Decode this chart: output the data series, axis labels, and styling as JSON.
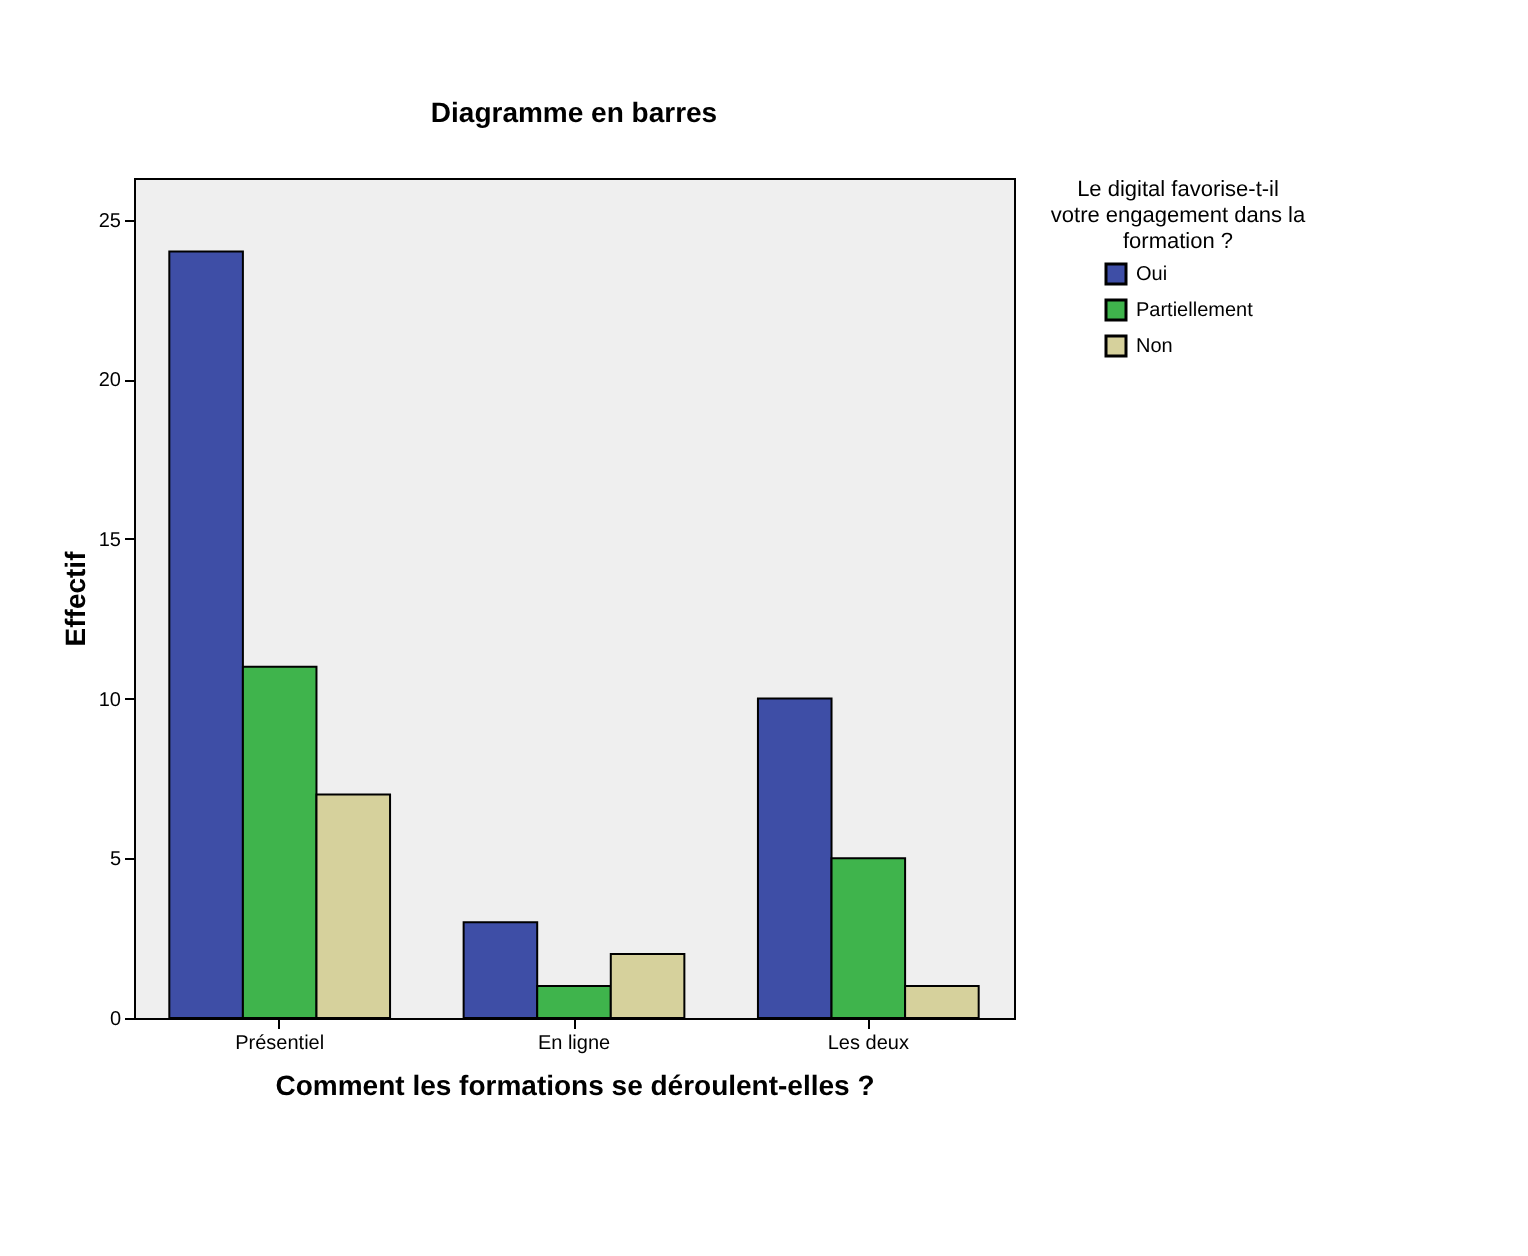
{
  "chart_data": {
    "type": "bar",
    "title": "Diagramme en barres",
    "xlabel": "Comment les formations se déroulent-elles ?",
    "ylabel": "Effectif",
    "legend_title": "Le digital favorise-t-il votre engagement dans la formation ?",
    "categories": [
      "Présentiel",
      "En ligne",
      "Les deux"
    ],
    "series": [
      {
        "name": "Oui",
        "color": "#3e4ea6",
        "values": [
          24,
          3,
          10
        ]
      },
      {
        "name": "Partiellement",
        "color": "#3fb44c",
        "values": [
          11,
          1,
          5
        ]
      },
      {
        "name": "Non",
        "color": "#d6d19c",
        "values": [
          7,
          2,
          1
        ]
      }
    ],
    "ylim": [
      0,
      26.3
    ],
    "yticks": [
      0,
      5,
      10,
      15,
      20,
      25
    ],
    "grid": false,
    "legend": "top right"
  }
}
